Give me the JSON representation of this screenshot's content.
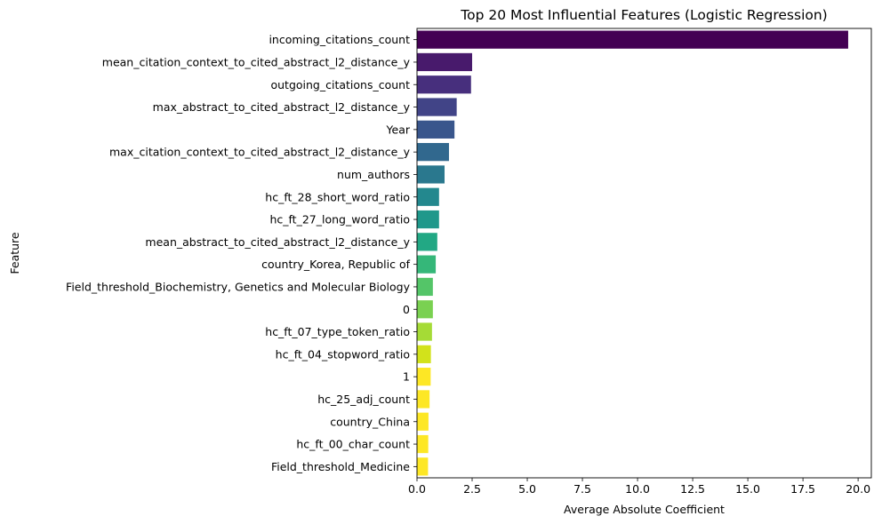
{
  "chart_data": {
    "type": "bar",
    "orientation": "horizontal",
    "title": "Top 20 Most Influential Features (Logistic Regression)",
    "xlabel": "Average Absolute Coefficient",
    "ylabel": "Feature",
    "xlim": [
      0,
      20.6
    ],
    "xticks": [
      "0.0",
      "2.5",
      "5.0",
      "7.5",
      "10.0",
      "12.5",
      "15.0",
      "17.5",
      "20.0"
    ],
    "grid": false,
    "palette": "viridis",
    "categories": [
      "incoming_citations_count",
      "mean_citation_context_to_cited_abstract_l2_distance_y",
      "outgoing_citations_count",
      "max_abstract_to_cited_abstract_l2_distance_y",
      "Year",
      "max_citation_context_to_cited_abstract_l2_distance_y",
      "num_authors",
      "hc_ft_28_short_word_ratio",
      "hc_ft_27_long_word_ratio",
      "mean_abstract_to_cited_abstract_l2_distance_y",
      "country_Korea, Republic of",
      "Field_threshold_Biochemistry, Genetics and Molecular Biology",
      "0",
      "hc_ft_07_type_token_ratio",
      "hc_ft_04_stopword_ratio",
      "1",
      "hc_25_adj_count",
      "country_China",
      "hc_ft_00_char_count",
      "Field_threshold_Medicine"
    ],
    "values": [
      19.55,
      2.5,
      2.45,
      1.8,
      1.7,
      1.45,
      1.25,
      1.0,
      1.0,
      0.92,
      0.85,
      0.72,
      0.72,
      0.68,
      0.63,
      0.62,
      0.57,
      0.52,
      0.51,
      0.5
    ],
    "colors": [
      "#440154",
      "#481a6c",
      "#472f7d",
      "#414487",
      "#39568c",
      "#31688e",
      "#2a788e",
      "#23888e",
      "#1f988b",
      "#22a884",
      "#35b779",
      "#54c568",
      "#7ad151",
      "#a5db36",
      "#d2e21b",
      "#fde725",
      "#fde725",
      "#fde725",
      "#fde725",
      "#fde725"
    ]
  }
}
